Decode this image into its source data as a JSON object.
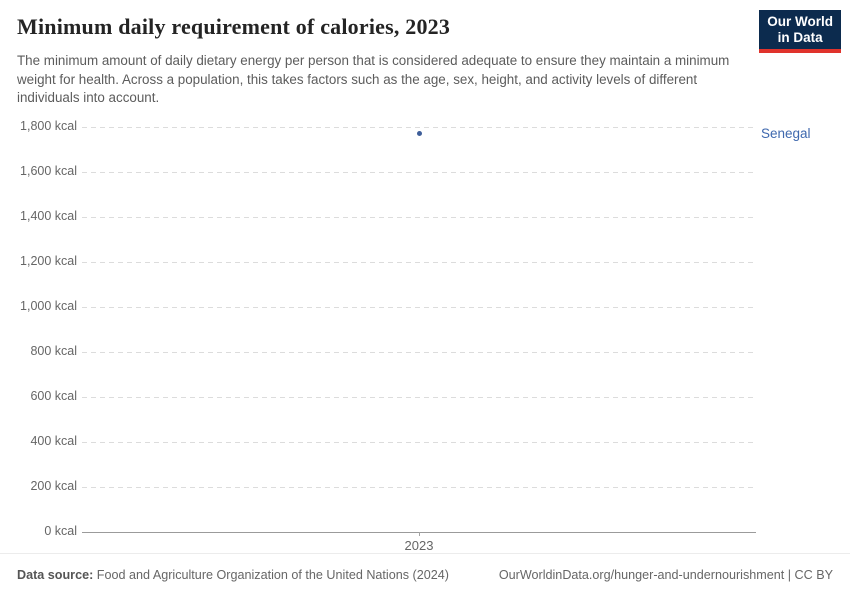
{
  "header": {
    "title": "Minimum daily requirement of calories, 2023",
    "subtitle": "The minimum amount of daily dietary energy per person that is considered adequate to ensure they maintain a minimum weight for health. Across a population, this takes factors such as the age, sex, height, and activity levels of different individuals into account.",
    "logo": {
      "line1": "Our World",
      "line2": "in Data"
    }
  },
  "chart_data": {
    "type": "scatter",
    "title": "Minimum daily requirement of calories, 2023",
    "x": [
      2023
    ],
    "series": [
      {
        "name": "Senegal",
        "values": [
          1770
        ],
        "unit": "kcal"
      }
    ],
    "ylim": [
      0,
      1800
    ],
    "ytick_step": 200,
    "ytick_labels": [
      "0 kcal",
      "200 kcal",
      "400 kcal",
      "600 kcal",
      "800 kcal",
      "1,000 kcal",
      "1,200 kcal",
      "1,400 kcal",
      "1,600 kcal",
      "1,800 kcal"
    ],
    "xtick_labels": [
      "2023"
    ],
    "grid": "horizontal-dashed",
    "legend_position": "right-of-point",
    "point_color": "#3E5E99",
    "entity_label_color": "#3E68AE"
  },
  "footer": {
    "datasource_label": "Data source:",
    "datasource_text": "Food and Agriculture Organization of the United Nations (2024)",
    "credit": "OurWorldinData.org/hunger-and-undernourishment | CC BY"
  }
}
